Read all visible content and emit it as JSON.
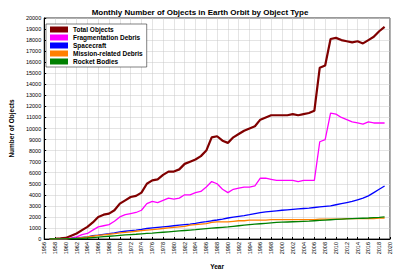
{
  "chart_data": {
    "type": "line",
    "title": "Monthly Number of Objects in Earth Orbit by Object Type",
    "x_label": "Year",
    "y_label": "Number of Objects",
    "x": [
      1957,
      1958,
      1959,
      1960,
      1961,
      1962,
      1963,
      1964,
      1965,
      1966,
      1967,
      1968,
      1969,
      1970,
      1971,
      1972,
      1973,
      1974,
      1975,
      1976,
      1977,
      1978,
      1979,
      1980,
      1981,
      1982,
      1983,
      1984,
      1985,
      1986,
      1987,
      1988,
      1989,
      1990,
      1991,
      1992,
      1993,
      1994,
      1995,
      1996,
      1997,
      1998,
      1999,
      2000,
      2001,
      2002,
      2003,
      2004,
      2005,
      2006,
      2007,
      2008,
      2009,
      2010,
      2011,
      2012,
      2013,
      2014,
      2015,
      2016,
      2017,
      2018,
      2019
    ],
    "series": [
      {
        "name": "Total Objects",
        "color": "#800000",
        "values": [
          0,
          20,
          50,
          100,
          300,
          500,
          800,
          1100,
          1500,
          2000,
          2200,
          2300,
          2600,
          3200,
          3500,
          3800,
          3900,
          4200,
          5000,
          5300,
          5400,
          5800,
          6100,
          6100,
          6300,
          6800,
          7000,
          7200,
          7500,
          8000,
          9200,
          9300,
          8900,
          8700,
          9200,
          9500,
          9800,
          10000,
          10200,
          10800,
          11000,
          11200,
          11200,
          11200,
          11200,
          11300,
          11200,
          11300,
          11400,
          11600,
          15500,
          15700,
          18100,
          18200,
          18000,
          17900,
          17800,
          17900,
          17700,
          18000,
          18300,
          18800,
          19200
        ]
      },
      {
        "name": "Fragmentation Debris",
        "color": "#ff00ff",
        "values": [
          0,
          0,
          0,
          0,
          100,
          200,
          400,
          500,
          800,
          1100,
          1200,
          1300,
          1600,
          2000,
          2200,
          2300,
          2400,
          2600,
          3200,
          3400,
          3300,
          3500,
          3700,
          3600,
          3700,
          4000,
          4000,
          4200,
          4300,
          4700,
          5200,
          5000,
          4500,
          4200,
          4500,
          4600,
          4700,
          4700,
          4800,
          5500,
          5500,
          5400,
          5300,
          5300,
          5300,
          5300,
          5200,
          5300,
          5300,
          5300,
          8800,
          9000,
          11400,
          11300,
          11000,
          10800,
          10600,
          10500,
          10400,
          10600,
          10500,
          10500,
          10500
        ]
      },
      {
        "name": "Spacecraft",
        "color": "#0000ff",
        "values": [
          0,
          5,
          15,
          30,
          60,
          100,
          150,
          200,
          300,
          350,
          420,
          480,
          550,
          650,
          700,
          750,
          800,
          870,
          950,
          1000,
          1050,
          1100,
          1150,
          1200,
          1250,
          1300,
          1350,
          1420,
          1500,
          1570,
          1650,
          1720,
          1800,
          1900,
          1980,
          2050,
          2120,
          2200,
          2300,
          2380,
          2450,
          2500,
          2550,
          2600,
          2640,
          2680,
          2720,
          2760,
          2800,
          2850,
          2900,
          2950,
          3000,
          3100,
          3200,
          3300,
          3400,
          3550,
          3700,
          3900,
          4200,
          4500,
          4800
        ]
      },
      {
        "name": "Mission-related Debris",
        "color": "#ff8000",
        "values": [
          0,
          0,
          5,
          20,
          50,
          80,
          120,
          180,
          250,
          320,
          380,
          430,
          480,
          550,
          600,
          650,
          700,
          750,
          800,
          850,
          900,
          950,
          1000,
          1050,
          1100,
          1150,
          1250,
          1300,
          1350,
          1400,
          1500,
          1550,
          1550,
          1550,
          1600,
          1650,
          1650,
          1700,
          1700,
          1700,
          1700,
          1750,
          1750,
          1750,
          1750,
          1750,
          1750,
          1750,
          1750,
          1750,
          1800,
          1800,
          1800,
          1800,
          1800,
          1850,
          1850,
          1850,
          1850,
          1850,
          1850,
          1900,
          1900
        ]
      },
      {
        "name": "Rocket Bodies",
        "color": "#008000",
        "values": [
          0,
          2,
          5,
          10,
          25,
          40,
          60,
          90,
          130,
          170,
          210,
          250,
          290,
          330,
          370,
          400,
          430,
          470,
          500,
          530,
          570,
          610,
          650,
          690,
          730,
          770,
          810,
          850,
          900,
          940,
          980,
          1020,
          1060,
          1100,
          1150,
          1200,
          1250,
          1300,
          1340,
          1380,
          1420,
          1460,
          1500,
          1520,
          1540,
          1560,
          1580,
          1600,
          1620,
          1650,
          1680,
          1710,
          1740,
          1770,
          1800,
          1820,
          1840,
          1860,
          1880,
          1900,
          1930,
          1960,
          2000
        ]
      }
    ],
    "xlim": [
      1956,
      2020
    ],
    "xticks": [
      1956,
      1958,
      1960,
      1962,
      1964,
      1966,
      1968,
      1970,
      1972,
      1974,
      1976,
      1978,
      1980,
      1982,
      1984,
      1986,
      1988,
      1990,
      1992,
      1994,
      1996,
      1998,
      2000,
      2002,
      2004,
      2006,
      2008,
      2010,
      2012,
      2014,
      2016,
      2018,
      2020
    ],
    "ylim": [
      0,
      20000
    ],
    "yticks": [
      0,
      1000,
      2000,
      3000,
      4000,
      5000,
      6000,
      7000,
      8000,
      9000,
      10000,
      11000,
      12000,
      13000,
      14000,
      15000,
      16000,
      17000,
      18000,
      19000,
      20000
    ],
    "grid": true,
    "legend": "upper left"
  }
}
